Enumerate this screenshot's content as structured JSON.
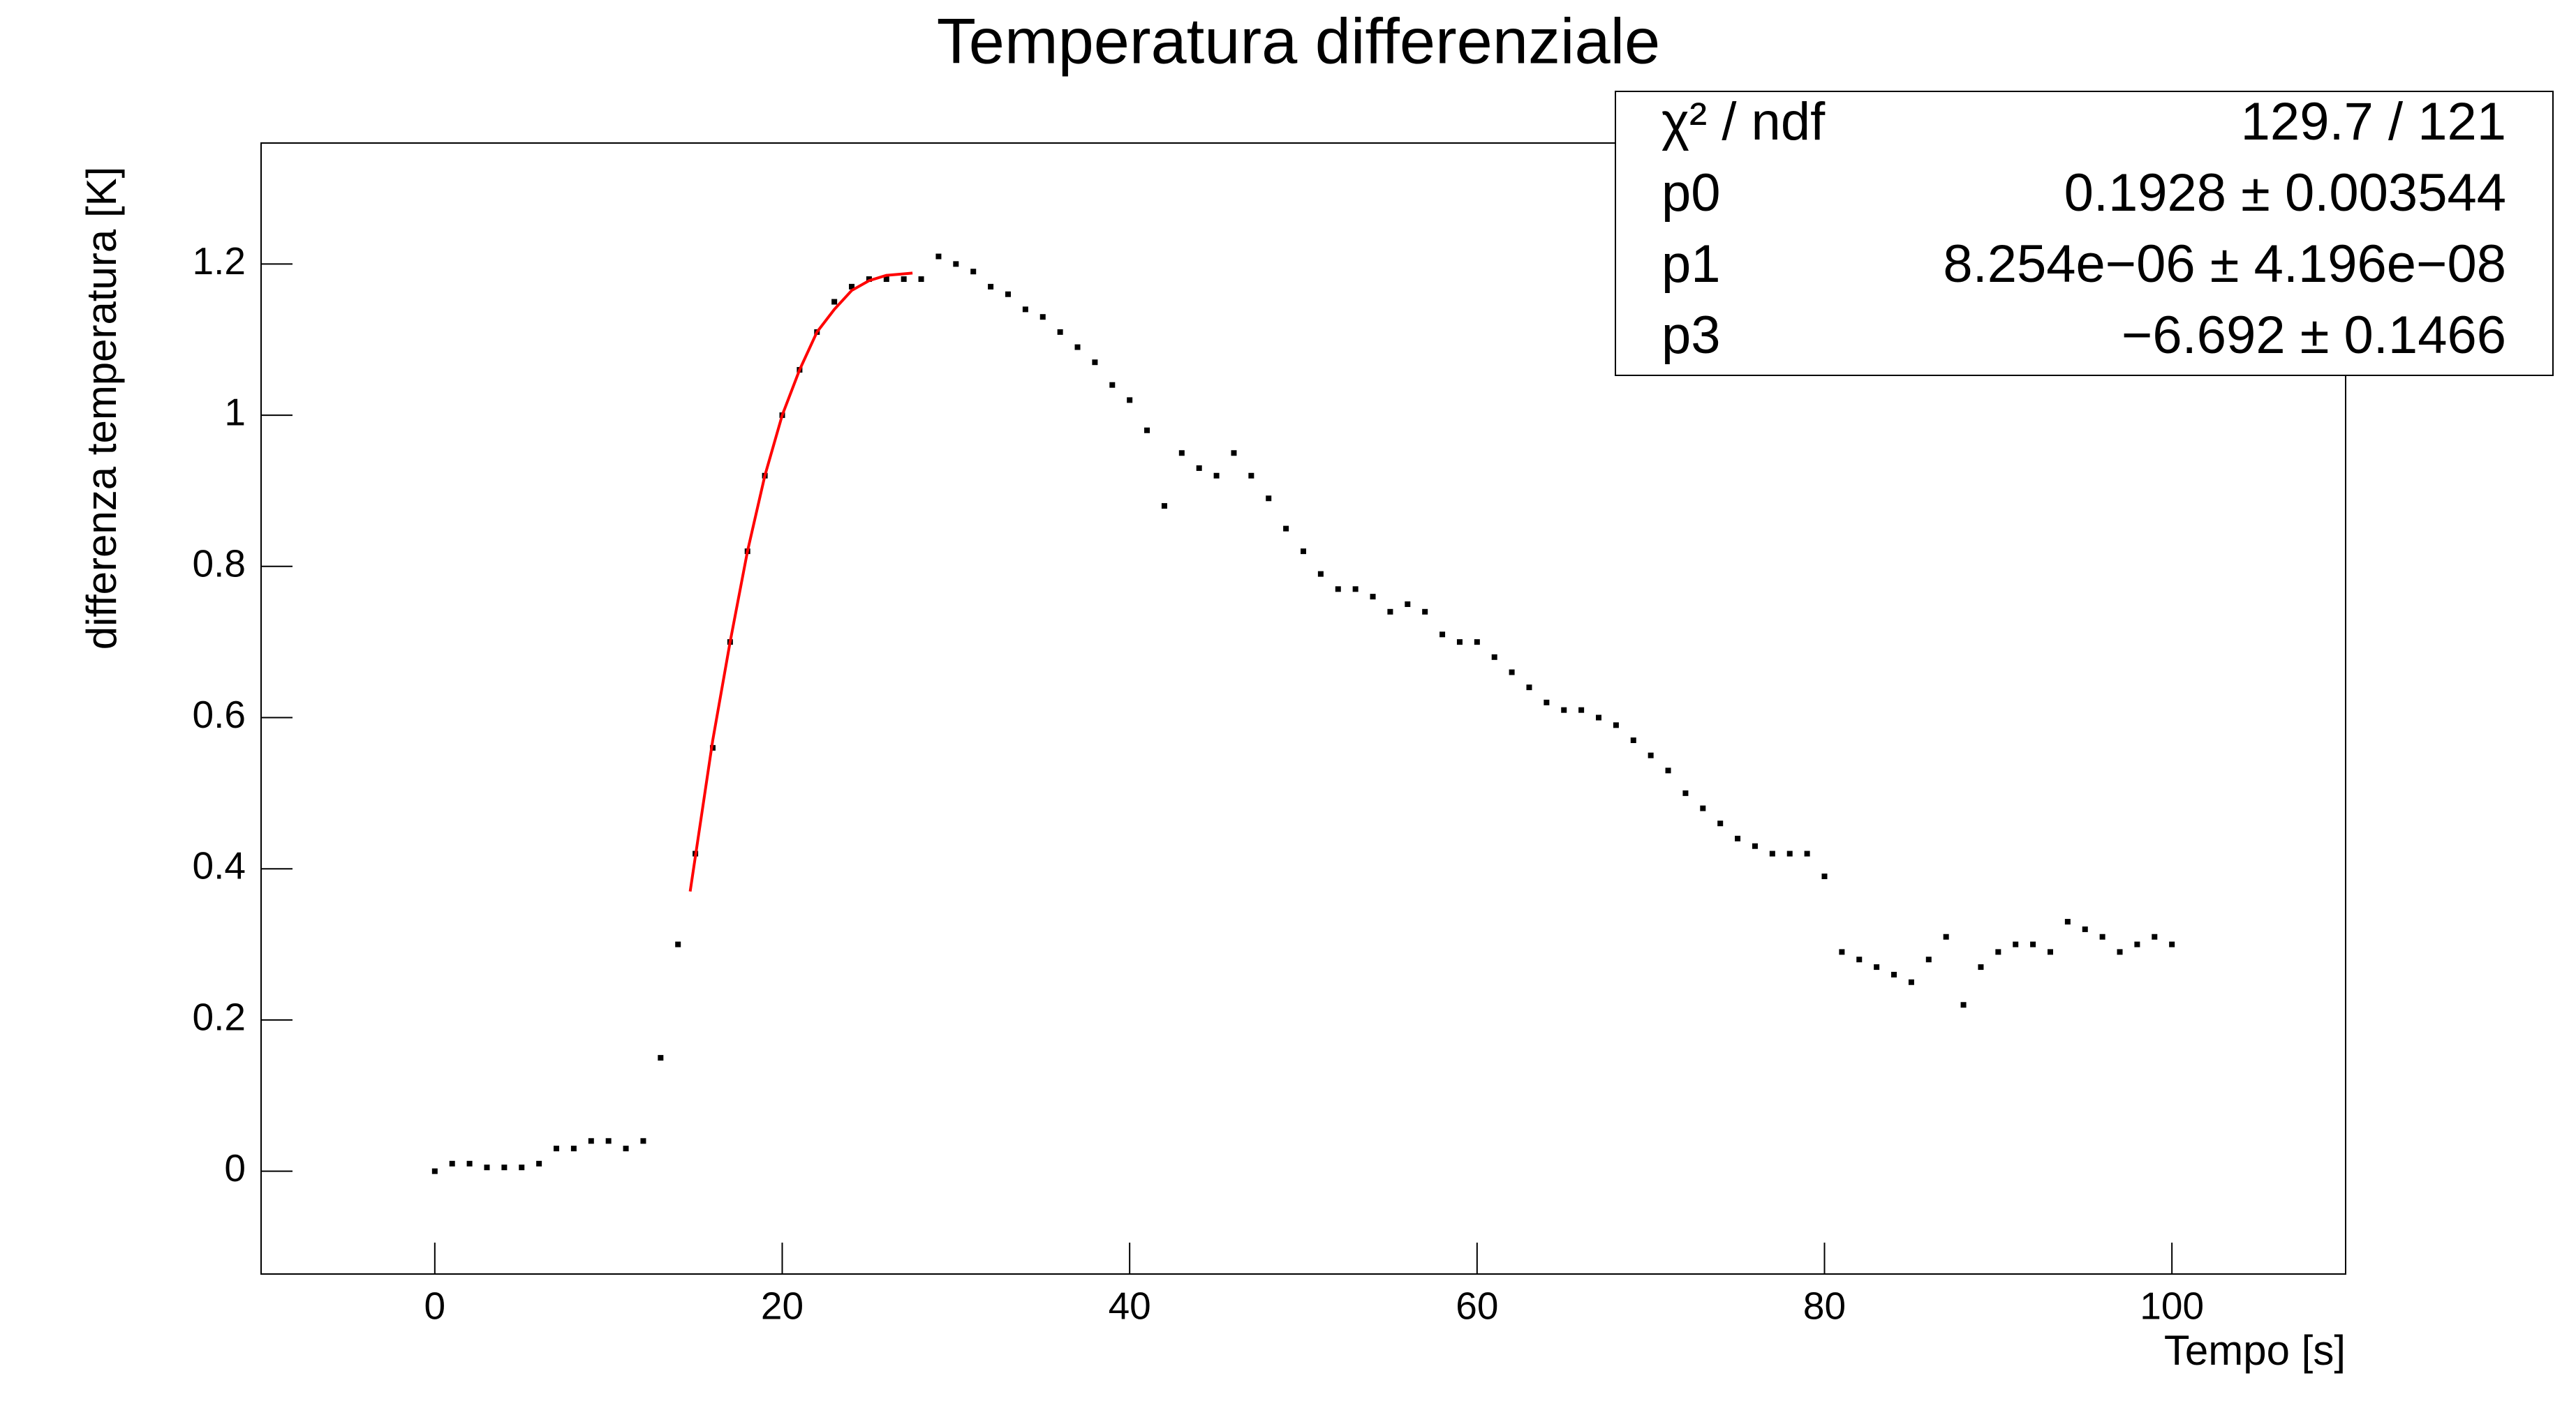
{
  "chart_data": {
    "type": "scatter",
    "title": "Temperatura differenziale",
    "xlabel": "Tempo [s]",
    "ylabel": "differenza temperatura [K]",
    "xlim": [
      -10,
      110
    ],
    "xticks": [
      0,
      20,
      40,
      60,
      80,
      100
    ],
    "ylim": [
      -0.136,
      1.36
    ],
    "yticks": [
      0,
      0.2,
      0.4,
      0.6,
      0.8,
      1,
      1.2
    ],
    "series": [
      {
        "type": "scatter",
        "color": "#000000",
        "x": [
          0,
          1,
          2,
          3,
          4,
          5,
          6,
          7,
          8,
          9,
          10,
          11,
          12,
          13,
          14,
          15,
          16,
          17,
          18,
          19,
          20,
          21,
          22,
          23,
          24,
          25,
          26,
          27,
          28,
          29,
          30,
          31,
          32,
          33,
          34,
          35,
          36,
          37,
          38,
          39,
          40,
          41,
          42,
          43,
          44,
          45,
          46,
          47,
          48,
          49,
          50,
          51,
          52,
          53,
          54,
          55,
          56,
          57,
          58,
          59,
          60,
          61,
          62,
          63,
          64,
          65,
          66,
          67,
          68,
          69,
          70,
          71,
          72,
          73,
          74,
          75,
          76,
          77,
          78,
          79,
          80,
          81,
          82,
          83,
          84,
          85,
          86,
          87,
          88,
          89,
          90,
          91,
          92,
          93,
          94,
          95,
          96,
          97,
          98,
          99,
          100
        ],
        "values": [
          0.0,
          0.01,
          0.01,
          0.005,
          0.005,
          0.005,
          0.01,
          0.03,
          0.03,
          0.04,
          0.04,
          0.03,
          0.04,
          0.15,
          0.3,
          0.42,
          0.56,
          0.7,
          0.82,
          0.92,
          1.0,
          1.06,
          1.11,
          1.15,
          1.17,
          1.18,
          1.18,
          1.18,
          1.18,
          1.21,
          1.2,
          1.19,
          1.17,
          1.16,
          1.14,
          1.13,
          1.11,
          1.09,
          1.07,
          1.04,
          1.02,
          0.98,
          0.88,
          0.95,
          0.93,
          0.92,
          0.95,
          0.92,
          0.89,
          0.85,
          0.82,
          0.79,
          0.77,
          0.77,
          0.76,
          0.74,
          0.75,
          0.74,
          0.71,
          0.7,
          0.7,
          0.68,
          0.66,
          0.64,
          0.62,
          0.61,
          0.61,
          0.6,
          0.59,
          0.57,
          0.55,
          0.53,
          0.5,
          0.48,
          0.46,
          0.44,
          0.43,
          0.42,
          0.42,
          0.42,
          0.39,
          0.29,
          0.28,
          0.27,
          0.26,
          0.25,
          0.28,
          0.31,
          0.22,
          0.27,
          0.29,
          0.3,
          0.3,
          0.29,
          0.33,
          0.32,
          0.31,
          0.29,
          0.3,
          0.31,
          0.3
        ]
      },
      {
        "type": "line",
        "color": "#ff0000",
        "x": [
          14.7,
          16,
          17,
          18,
          19,
          20,
          21,
          22,
          23,
          24,
          25,
          26,
          27,
          27.5
        ],
        "values": [
          0.37,
          0.57,
          0.7,
          0.82,
          0.92,
          1.0,
          1.06,
          1.11,
          1.14,
          1.165,
          1.178,
          1.185,
          1.187,
          1.188
        ]
      }
    ]
  },
  "stats": {
    "rows": [
      [
        "χ² / ndf",
        "129.7 / 121"
      ],
      [
        "p0",
        "0.1928 ± 0.003544"
      ],
      [
        "p1",
        "8.254e−06 ± 4.196e−08"
      ],
      [
        "p3",
        "−6.692 ± 0.1466"
      ]
    ]
  }
}
